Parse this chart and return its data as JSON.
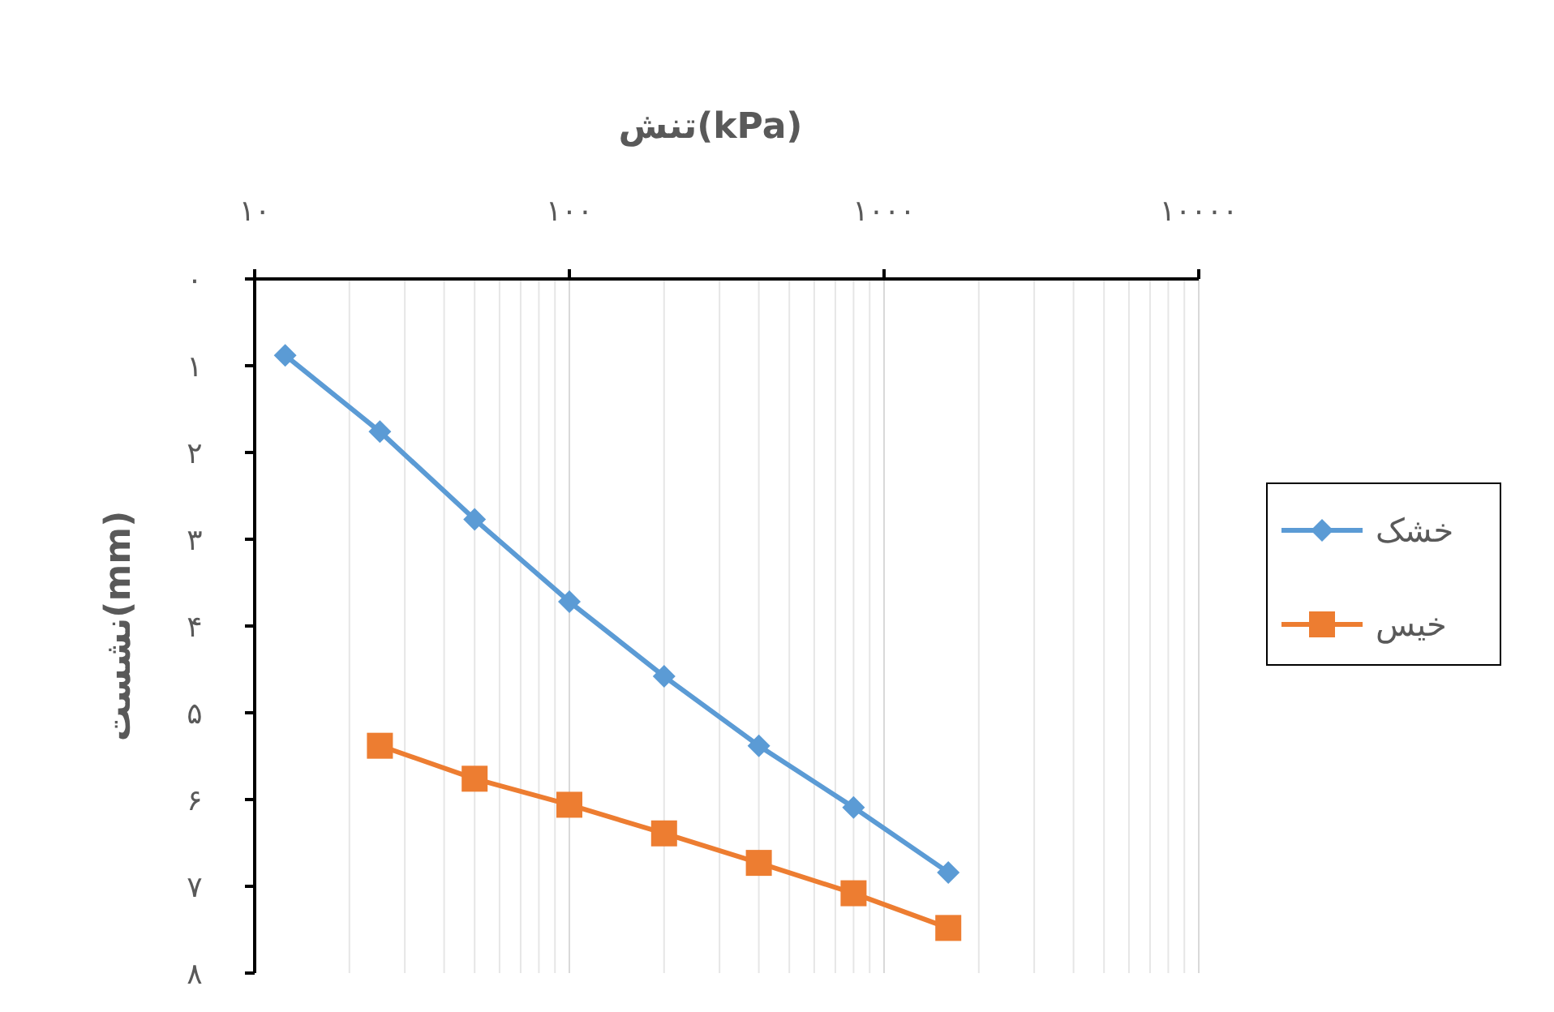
{
  "chart_data": {
    "type": "line",
    "xlabel": "تنش(kPa)",
    "ylabel": "نشست(mm)",
    "log": "x",
    "grid": "x",
    "legend": "right",
    "xlim": [
      10,
      10000
    ],
    "xticks": [
      {
        "value": 10,
        "label": "۱۰"
      },
      {
        "value": 100,
        "label": "۱۰۰"
      },
      {
        "value": 1000,
        "label": "۱۰۰۰"
      },
      {
        "value": 10000,
        "label": "۱۰۰۰۰"
      }
    ],
    "ylim": [
      8,
      0
    ],
    "yticks": [
      {
        "value": 0,
        "label": "۰"
      },
      {
        "value": 1,
        "label": "۱"
      },
      {
        "value": 2,
        "label": "۲"
      },
      {
        "value": 3,
        "label": "۳"
      },
      {
        "value": 4,
        "label": "۴"
      },
      {
        "value": 5,
        "label": "۵"
      },
      {
        "value": 6,
        "label": "۶"
      },
      {
        "value": 7,
        "label": "۷"
      },
      {
        "value": 8,
        "label": "۸"
      }
    ],
    "series": [
      {
        "name": "خشک",
        "color": "#5b9bd5",
        "marker": "diamond",
        "x": [
          12.5,
          25,
          50,
          100,
          200,
          400,
          800,
          1600
        ],
        "values": [
          0.88,
          1.76,
          2.77,
          3.72,
          4.58,
          5.38,
          6.09,
          6.84
        ]
      },
      {
        "name": "خیس",
        "color": "#ed7d31",
        "marker": "square",
        "x": [
          25,
          50,
          100,
          200,
          400,
          800,
          1600
        ],
        "values": [
          5.38,
          5.76,
          6.06,
          6.39,
          6.73,
          7.08,
          7.48
        ]
      }
    ]
  }
}
